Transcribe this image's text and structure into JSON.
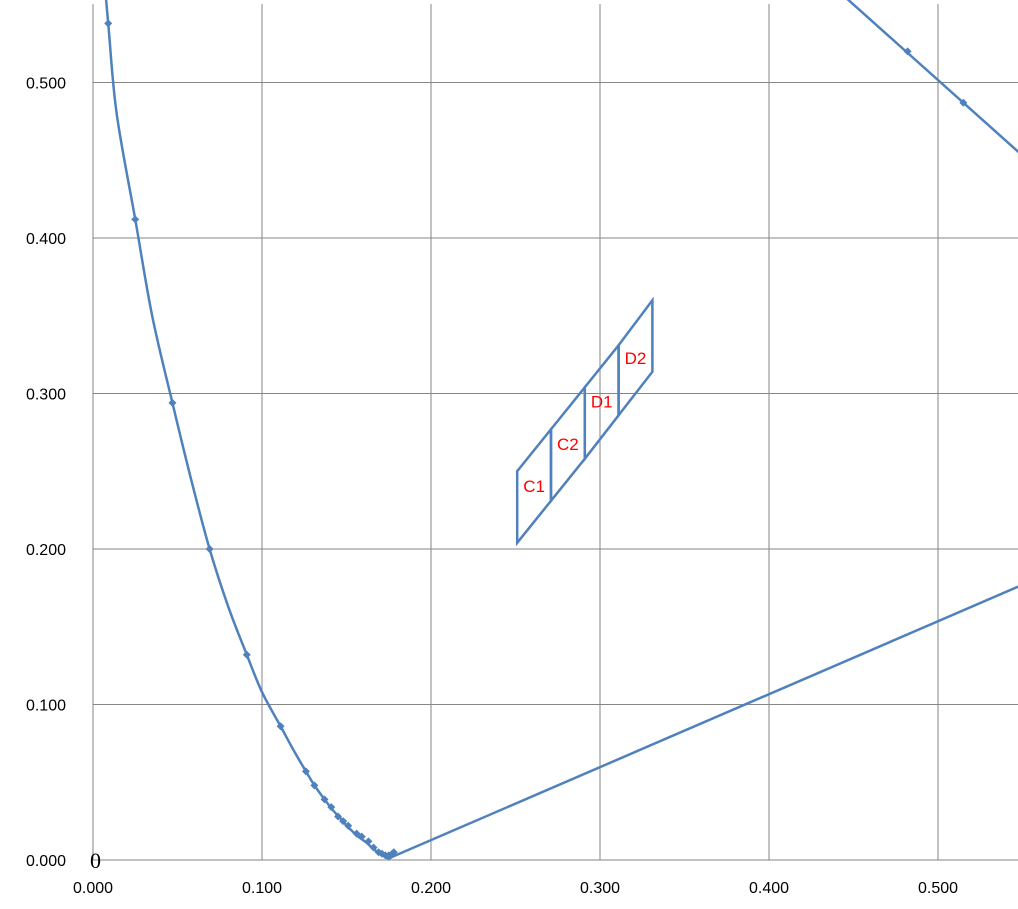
{
  "chart_data": {
    "type": "scatter",
    "title": "",
    "xlabel": "",
    "ylabel": "",
    "xlim": [
      0.0,
      0.55
    ],
    "ylim": [
      0.0,
      0.55
    ],
    "x_ticks": [
      "0.000",
      "0.100",
      "0.200",
      "0.300",
      "0.400",
      "0.500"
    ],
    "y_ticks": [
      "0.000",
      "0.100",
      "0.200",
      "0.300",
      "0.400",
      "0.500"
    ],
    "grid": true,
    "legend": "none",
    "origin_label": "0",
    "colors": {
      "series": "#4F81BD",
      "region_label": "#FF0000",
      "grid": "#868686"
    },
    "series": [
      {
        "kind": "spectral-locus",
        "points": [
          [
            0.004,
            0.6
          ],
          [
            0.009,
            0.538
          ],
          [
            0.014,
            0.48
          ],
          [
            0.025,
            0.412
          ],
          [
            0.035,
            0.35
          ],
          [
            0.047,
            0.294
          ],
          [
            0.058,
            0.245
          ],
          [
            0.069,
            0.2
          ],
          [
            0.08,
            0.163
          ],
          [
            0.091,
            0.132
          ],
          [
            0.1,
            0.108
          ],
          [
            0.111,
            0.086
          ],
          [
            0.119,
            0.07
          ],
          [
            0.126,
            0.057
          ],
          [
            0.131,
            0.048
          ],
          [
            0.137,
            0.039
          ],
          [
            0.142,
            0.032
          ],
          [
            0.147,
            0.026
          ],
          [
            0.152,
            0.02
          ],
          [
            0.157,
            0.015
          ],
          [
            0.162,
            0.011
          ],
          [
            0.166,
            0.007
          ],
          [
            0.17,
            0.004
          ],
          [
            0.173,
            0.002
          ],
          [
            0.175,
            0.001
          ],
          [
            0.177,
            0.002
          ]
        ]
      },
      {
        "kind": "purple-line",
        "points": [
          [
            0.177,
            0.002
          ],
          [
            0.55,
            0.177
          ]
        ]
      },
      {
        "kind": "upper-right-line",
        "points": [
          [
            0.445,
            0.555
          ],
          [
            0.55,
            0.453
          ]
        ],
        "markers": [
          [
            0.482,
            0.52
          ],
          [
            0.515,
            0.487
          ],
          [
            0.55,
            0.453
          ]
        ]
      }
    ],
    "markers": [
      [
        0.009,
        0.538
      ],
      [
        0.025,
        0.412
      ],
      [
        0.047,
        0.294
      ],
      [
        0.069,
        0.2
      ],
      [
        0.091,
        0.132
      ],
      [
        0.111,
        0.086
      ],
      [
        0.126,
        0.057
      ],
      [
        0.131,
        0.048
      ],
      [
        0.137,
        0.039
      ],
      [
        0.141,
        0.034
      ],
      [
        0.145,
        0.028
      ],
      [
        0.148,
        0.025
      ],
      [
        0.151,
        0.022
      ],
      [
        0.156,
        0.017
      ],
      [
        0.159,
        0.015
      ],
      [
        0.163,
        0.012
      ],
      [
        0.166,
        0.008
      ],
      [
        0.169,
        0.005
      ],
      [
        0.171,
        0.004
      ],
      [
        0.173,
        0.003
      ],
      [
        0.175,
        0.003
      ],
      [
        0.177,
        0.004
      ],
      [
        0.178,
        0.005
      ]
    ],
    "regions": [
      {
        "label": "C1",
        "quad": [
          [
            0.251,
            0.204
          ],
          [
            0.271,
            0.231
          ],
          [
            0.271,
            0.277
          ],
          [
            0.251,
            0.25
          ]
        ]
      },
      {
        "label": "C2",
        "quad": [
          [
            0.271,
            0.231
          ],
          [
            0.291,
            0.258
          ],
          [
            0.291,
            0.304
          ],
          [
            0.271,
            0.277
          ]
        ]
      },
      {
        "label": "D1",
        "quad": [
          [
            0.291,
            0.258
          ],
          [
            0.311,
            0.286
          ],
          [
            0.311,
            0.331
          ],
          [
            0.291,
            0.304
          ]
        ]
      },
      {
        "label": "D2",
        "quad": [
          [
            0.311,
            0.286
          ],
          [
            0.331,
            0.314
          ],
          [
            0.331,
            0.36
          ],
          [
            0.311,
            0.331
          ]
        ]
      }
    ]
  }
}
